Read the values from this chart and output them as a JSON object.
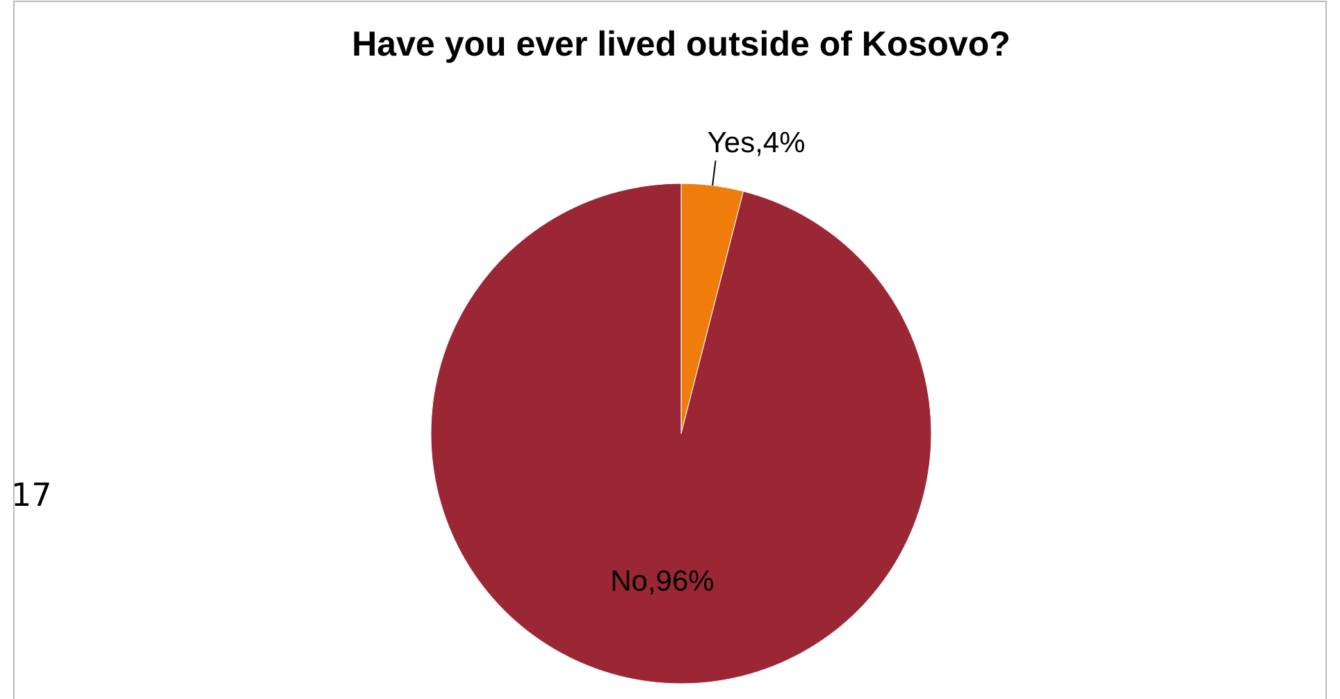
{
  "chart_data": {
    "type": "pie",
    "title": "Have you ever lived outside of Kosovo?",
    "categories": [
      "Yes",
      "No"
    ],
    "values": [
      4,
      96
    ],
    "colors": [
      "#ee7d0b",
      "#9b2735"
    ],
    "value_labels": [
      ",4%",
      ",96%"
    ],
    "legend": false,
    "annotations": [
      "17"
    ]
  }
}
